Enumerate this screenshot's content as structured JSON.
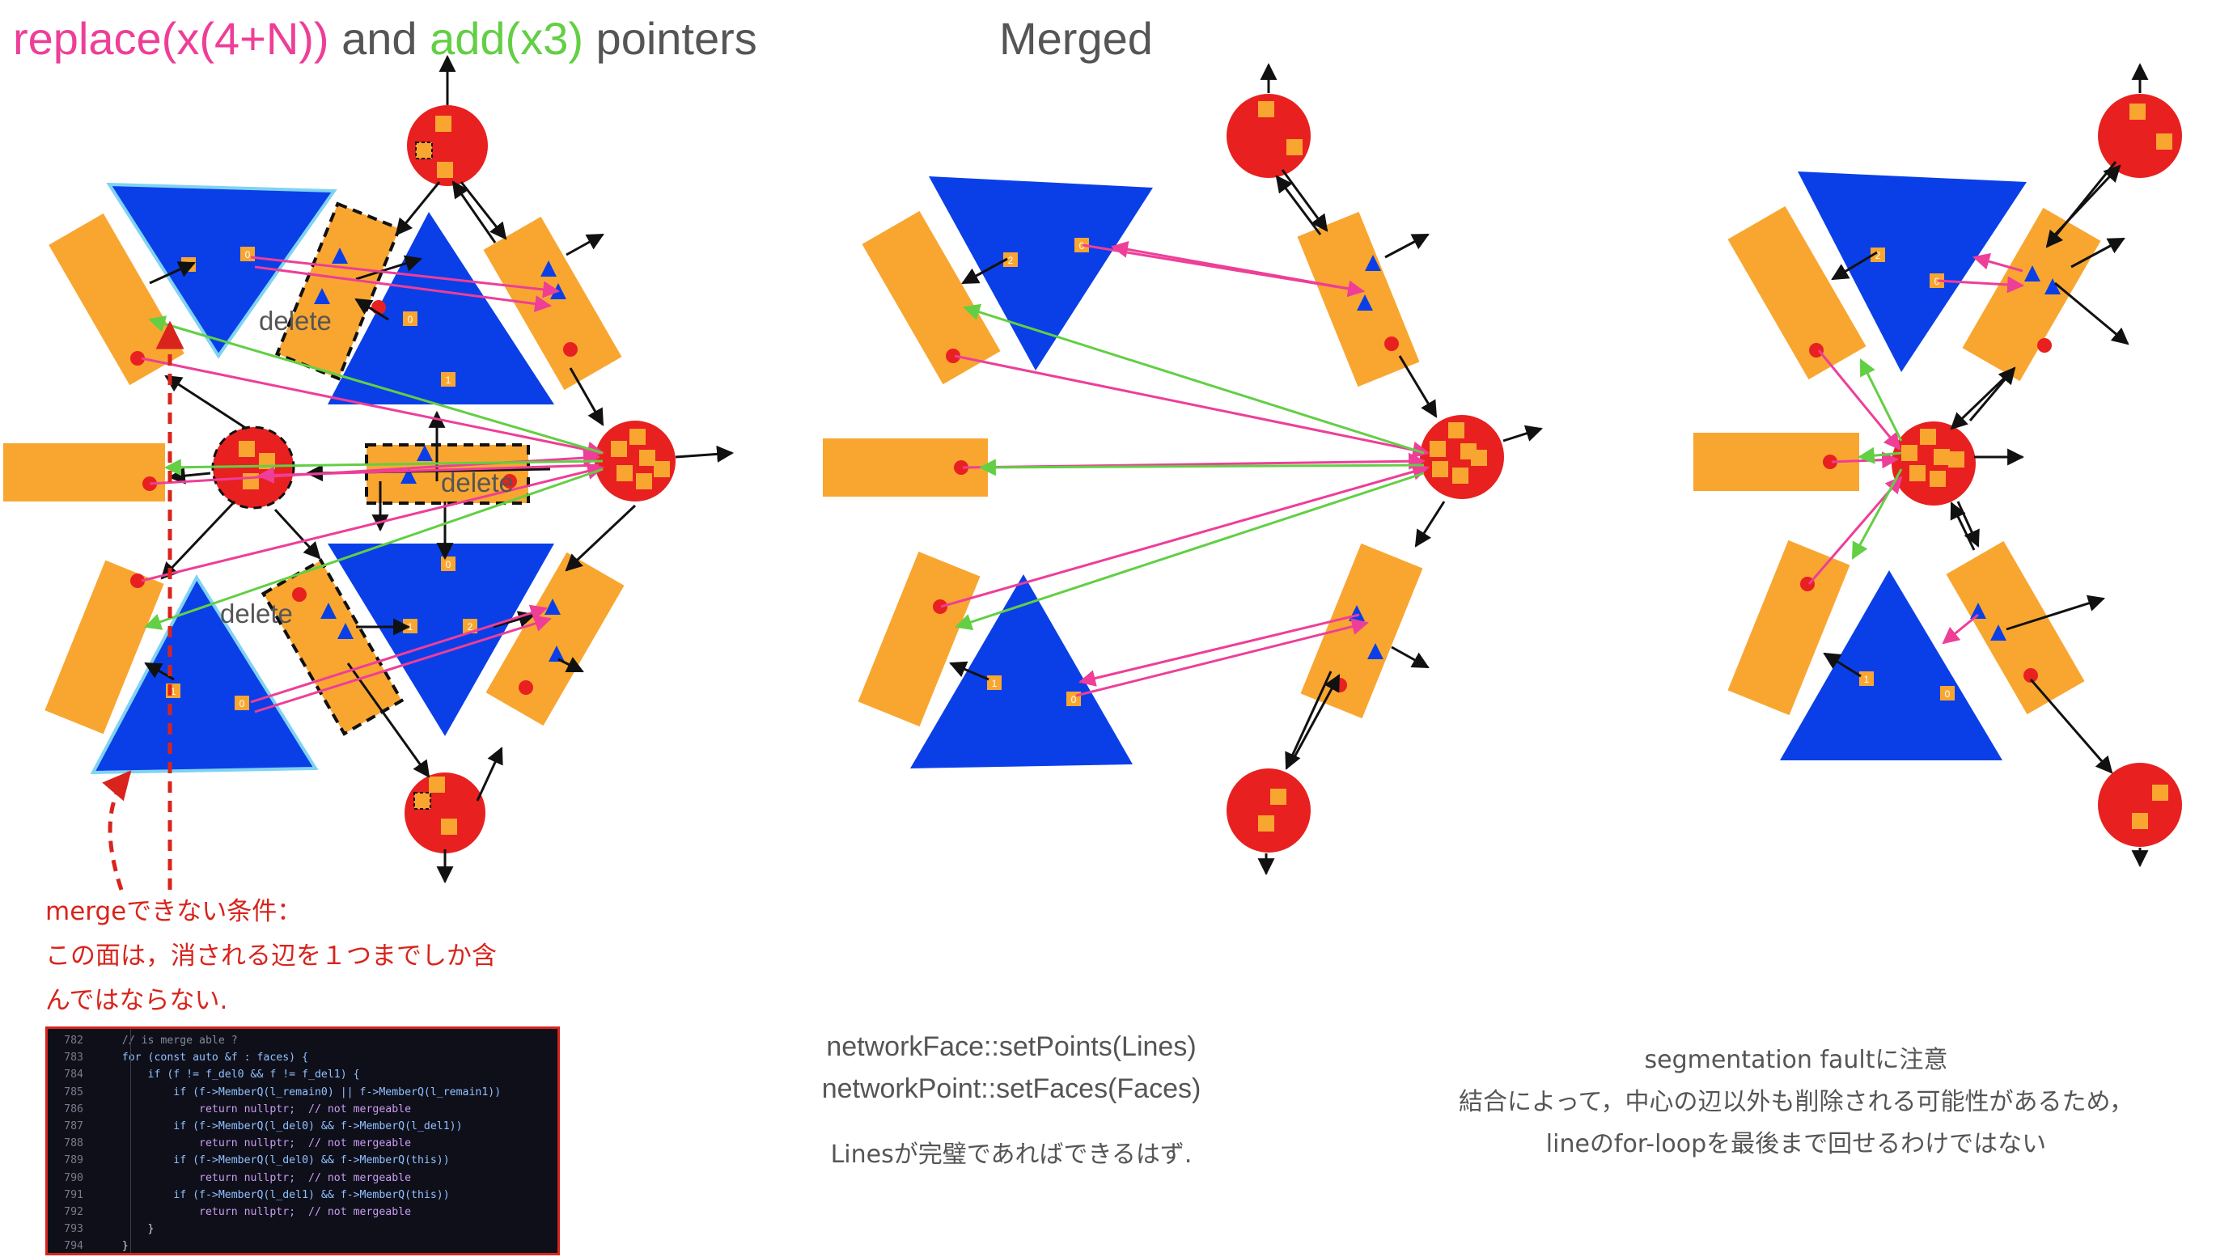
{
  "title": {
    "replace_text": "replace(x(4+N))",
    "and_text": " and ",
    "add_text": "add(x3)",
    "pointers_text": " pointers",
    "merged_text": "Merged"
  },
  "colors": {
    "replace_pink": "#ee3e98",
    "add_green": "#62cf44",
    "orange_line": "#f9a631",
    "blue_face": "#0a3fe8",
    "red_point": "#e82020",
    "label_gray": "#555555",
    "note_red": "#d8241c"
  },
  "diagram": {
    "delete_labels": [
      "delete",
      "delete",
      "delete"
    ],
    "face_index_labels": [
      "0",
      "1",
      "2"
    ]
  },
  "merge_condition_note": {
    "lines": [
      "mergeできない条件：",
      "この面は，消される辺を１つまでしか含",
      "んではならない."
    ]
  },
  "code_snippet": {
    "lines": [
      {
        "no": "782",
        "text": "    // is merge able ?"
      },
      {
        "no": "783",
        "text": "    for (const auto &f : faces) {"
      },
      {
        "no": "784",
        "text": "        if (f != f_del0 && f != f_del1) {"
      },
      {
        "no": "785",
        "text": "            if (f->MemberQ(l_remain0) || f->MemberQ(l_remain1))"
      },
      {
        "no": "786",
        "text": "                return nullptr;  // not mergeable"
      },
      {
        "no": "787",
        "text": "            if (f->MemberQ(l_del0) && f->MemberQ(l_del1))"
      },
      {
        "no": "788",
        "text": "                return nullptr;  // not mergeable"
      },
      {
        "no": "789",
        "text": "            if (f->MemberQ(l_del0) && f->MemberQ(this))"
      },
      {
        "no": "790",
        "text": "                return nullptr;  // not mergeable"
      },
      {
        "no": "791",
        "text": "            if (f->MemberQ(l_del1) && f->MemberQ(this))"
      },
      {
        "no": "792",
        "text": "                return nullptr;  // not mergeable"
      },
      {
        "no": "793",
        "text": "        }"
      },
      {
        "no": "794",
        "text": "    }"
      }
    ]
  },
  "middle_caption": {
    "line1": "networkFace::setPoints(Lines)",
    "line2": "networkPoint::setFaces(Faces)",
    "line3": "Linesが完璧であればできるはず."
  },
  "right_caption": {
    "line1": "segmentation faultに注意",
    "line2": "結合によって，中心の辺以外も削除される可能性があるため，",
    "line3": "lineのfor-loopを最後まで回せるわけではない"
  }
}
